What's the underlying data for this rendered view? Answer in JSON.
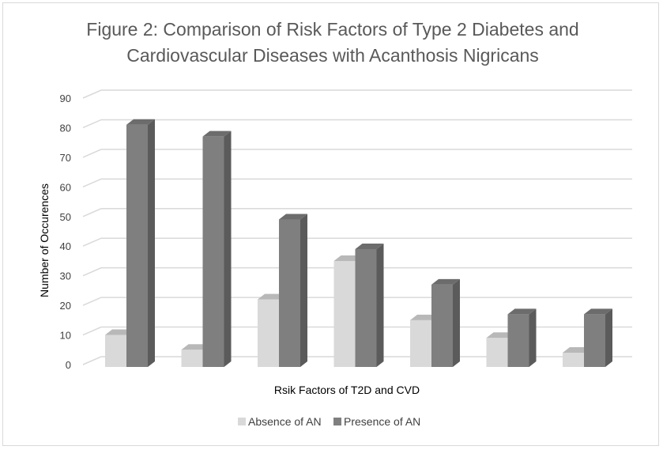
{
  "chart_data": {
    "type": "bar",
    "title_lines": [
      "Figure 2: Comparison of Risk Factors of Type 2 Diabetes and",
      "Cardiovascular Diseases with Acanthosis Nigricans"
    ],
    "xlabel": "Rsik Factors of T2D and CVD",
    "ylabel": "Number  of Occurences",
    "ylim": [
      0,
      90
    ],
    "yticks": [
      0,
      10,
      20,
      30,
      40,
      50,
      60,
      70,
      80,
      90
    ],
    "categories": [
      "",
      "",
      "",
      "",
      "",
      "",
      ""
    ],
    "series": [
      {
        "name": "Absence of AN",
        "color": "#d9d9d9",
        "values": [
          10,
          5,
          22,
          35,
          15,
          9,
          4
        ]
      },
      {
        "name": "Presence of AN",
        "color": "#7f7f7f",
        "values": [
          81,
          77,
          49,
          39,
          27,
          17,
          17
        ]
      }
    ],
    "grid": true,
    "legend": "bottom"
  }
}
